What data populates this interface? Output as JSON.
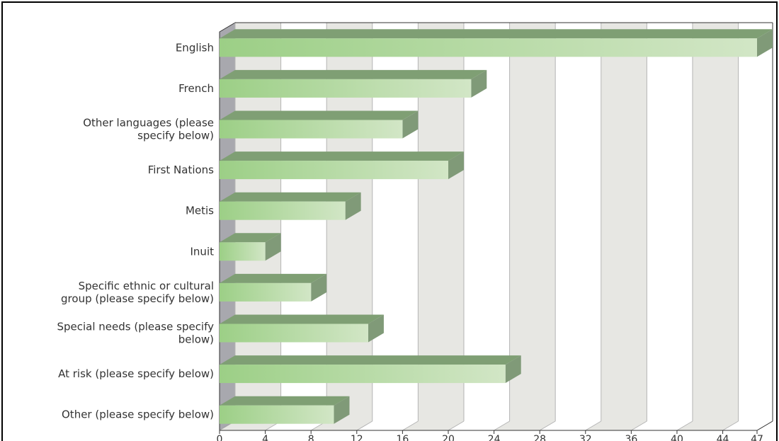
{
  "chart_data": {
    "type": "bar",
    "orientation": "horizontal",
    "style": "3d",
    "title": "",
    "xlabel": "",
    "ylabel": "",
    "categories": [
      [
        "English"
      ],
      [
        "French"
      ],
      [
        "Other languages (please",
        "specify below)"
      ],
      [
        "First Nations"
      ],
      [
        "Metis"
      ],
      [
        "Inuit"
      ],
      [
        "Specific ethnic or cultural",
        "group (please specify below)"
      ],
      [
        "Special needs (please specify",
        "below)"
      ],
      [
        "At risk (please specify below)"
      ],
      [
        "Other (please specify below)"
      ]
    ],
    "values": [
      47,
      22,
      16,
      20,
      11,
      4,
      8,
      13,
      25,
      10
    ],
    "xlim": [
      0,
      47
    ],
    "xticks": [
      0,
      4,
      8,
      12,
      16,
      20,
      24,
      28,
      32,
      36,
      40,
      44,
      47
    ],
    "grid": "alternating-bands",
    "colors": {
      "bar_front_left": "#9ccf86",
      "bar_front_right": "#d2e6c6",
      "bar_top": "#7f9f74",
      "bar_side": "#809a78",
      "band": "#e7e7e3",
      "wall": "#a8a8ae",
      "grid_line": "#b4b4b4",
      "axis": "#333333"
    }
  }
}
